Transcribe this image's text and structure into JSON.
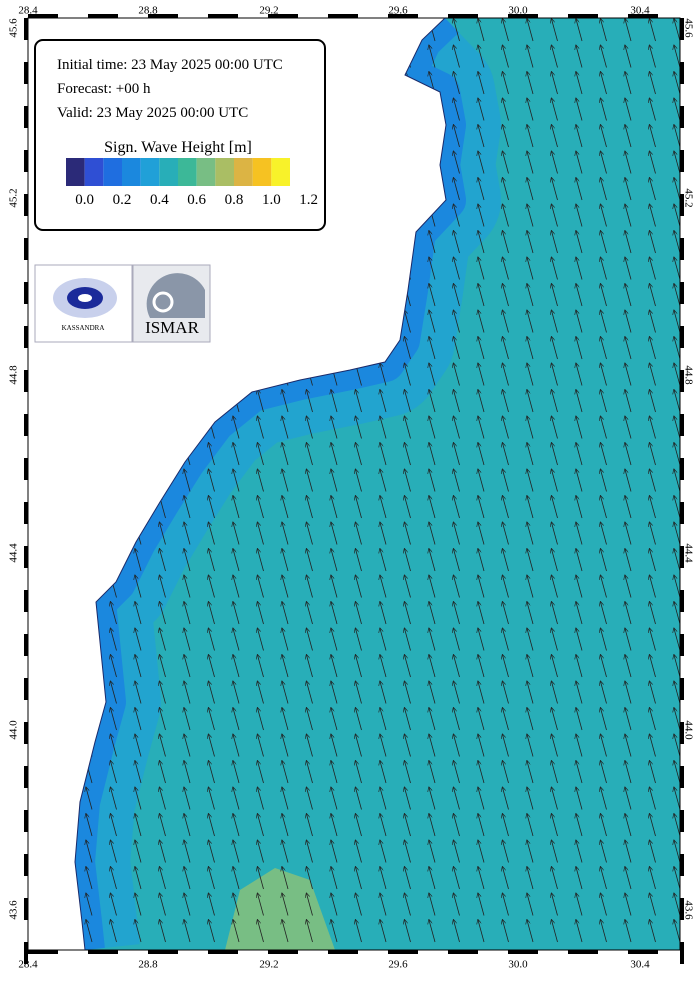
{
  "info": {
    "lines": [
      "Initial time: 23 May 2025 00:00 UTC",
      "Forecast: +00 h",
      "Valid: 23 May 2025 00:00 UTC"
    ]
  },
  "colorbar": {
    "title": "Sign. Wave Height [m]",
    "colors": [
      "#2b2a78",
      "#2f4fd4",
      "#1f6ee0",
      "#1b88de",
      "#20a0d8",
      "#28aeb8",
      "#3cb898",
      "#78be84",
      "#aabe64",
      "#dcb444",
      "#f6c222",
      "#f8f22a"
    ],
    "labels": [
      "0.0",
      "0.2",
      "0.4",
      "0.6",
      "0.8",
      "1.0",
      "1.2"
    ]
  },
  "logos": {
    "left": "KASSANDRA",
    "right": "ISMAR"
  },
  "axes": {
    "lon": [
      "28.4",
      "28.8",
      "29.2",
      "29.6",
      "30.0",
      "30.4"
    ],
    "lat": [
      "45.6",
      "45.2",
      "44.8",
      "44.4",
      "44.0",
      "43.6"
    ]
  }
}
